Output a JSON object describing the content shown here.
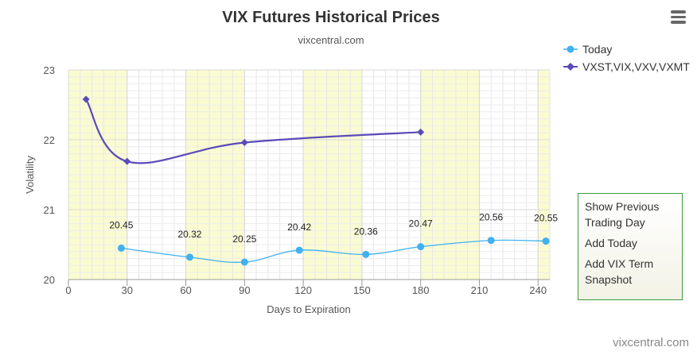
{
  "header": {
    "menu_icon": "hamburger-icon"
  },
  "menu": {
    "items": [
      {
        "label": "Show Previous Trading Day"
      },
      {
        "label": "Add Today"
      },
      {
        "label": "Add VIX Term Snapshot"
      }
    ]
  },
  "credit": "vixcentral.com",
  "chart_data": {
    "type": "line",
    "title": "VIX Futures Historical Prices",
    "subtitle": "vixcentral.com",
    "xlabel": "Days to Expiration",
    "ylabel": "Volatility",
    "xlim": [
      0,
      246
    ],
    "ylim": [
      20,
      23
    ],
    "x_ticks": [
      0,
      30,
      60,
      90,
      120,
      150,
      180,
      210,
      240
    ],
    "y_ticks": [
      20,
      21,
      22,
      23
    ],
    "grid": true,
    "legend_position": "top-right",
    "shaded_bands": [
      [
        0,
        30
      ],
      [
        60,
        90
      ],
      [
        120,
        150
      ],
      [
        180,
        210
      ],
      [
        240,
        246
      ]
    ],
    "colors": {
      "today": "#3fb1f0",
      "term": "#5a4bb8",
      "band": "#fbfbd2"
    },
    "series": [
      {
        "name": "Today",
        "color": "#3fb1f0",
        "marker": "circle",
        "x": [
          27,
          62,
          90,
          118,
          152,
          180,
          216,
          244
        ],
        "values": [
          20.45,
          20.32,
          20.25,
          20.42,
          20.36,
          20.47,
          20.56,
          20.55
        ],
        "labels": [
          "20.45",
          "20.32",
          "20.25",
          "20.42",
          "20.36",
          "20.47",
          "20.56",
          "20.55"
        ]
      },
      {
        "name": "VXST,VIX,VXV,VXMT",
        "color": "#5a4bb8",
        "marker": "diamond",
        "x": [
          9,
          30,
          90,
          180
        ],
        "values": [
          22.58,
          21.69,
          21.96,
          22.11
        ]
      }
    ]
  }
}
